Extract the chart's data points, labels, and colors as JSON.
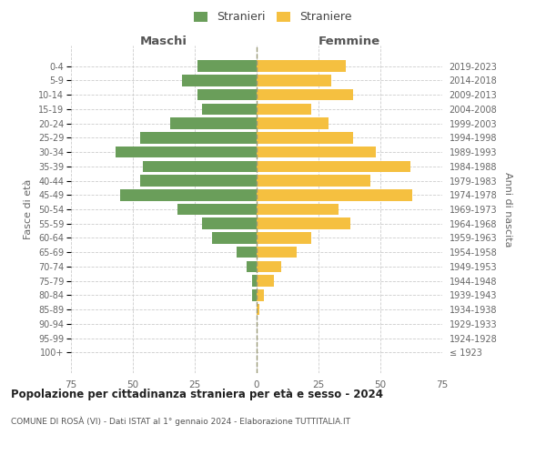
{
  "age_groups": [
    "100+",
    "95-99",
    "90-94",
    "85-89",
    "80-84",
    "75-79",
    "70-74",
    "65-69",
    "60-64",
    "55-59",
    "50-54",
    "45-49",
    "40-44",
    "35-39",
    "30-34",
    "25-29",
    "20-24",
    "15-19",
    "10-14",
    "5-9",
    "0-4"
  ],
  "birth_years": [
    "≤ 1923",
    "1924-1928",
    "1929-1933",
    "1934-1938",
    "1939-1943",
    "1944-1948",
    "1949-1953",
    "1954-1958",
    "1959-1963",
    "1964-1968",
    "1969-1973",
    "1974-1978",
    "1979-1983",
    "1984-1988",
    "1989-1993",
    "1994-1998",
    "1999-2003",
    "2004-2008",
    "2009-2013",
    "2014-2018",
    "2019-2023"
  ],
  "maschi": [
    0,
    0,
    0,
    0,
    2,
    2,
    4,
    8,
    18,
    22,
    32,
    55,
    47,
    46,
    57,
    47,
    35,
    22,
    24,
    30,
    24
  ],
  "femmine": [
    0,
    0,
    0,
    1,
    3,
    7,
    10,
    16,
    22,
    38,
    33,
    63,
    46,
    62,
    48,
    39,
    29,
    22,
    39,
    30,
    36
  ],
  "color_maschi": "#6a9e5a",
  "color_femmine": "#f5c040",
  "color_dashed": "#8a8a5a",
  "title": "Popolazione per cittadinanza straniera per età e sesso - 2024",
  "subtitle": "COMUNE DI ROSÀ (VI) - Dati ISTAT al 1° gennaio 2024 - Elaborazione TUTTITALIA.IT",
  "legend_maschi": "Stranieri",
  "legend_femmine": "Straniere",
  "xlabel_left": "Maschi",
  "xlabel_right": "Femmine",
  "ylabel_left": "Fasce di età",
  "ylabel_right": "Anni di nascita",
  "xlim": 75,
  "background_color": "#ffffff",
  "grid_color": "#cccccc"
}
